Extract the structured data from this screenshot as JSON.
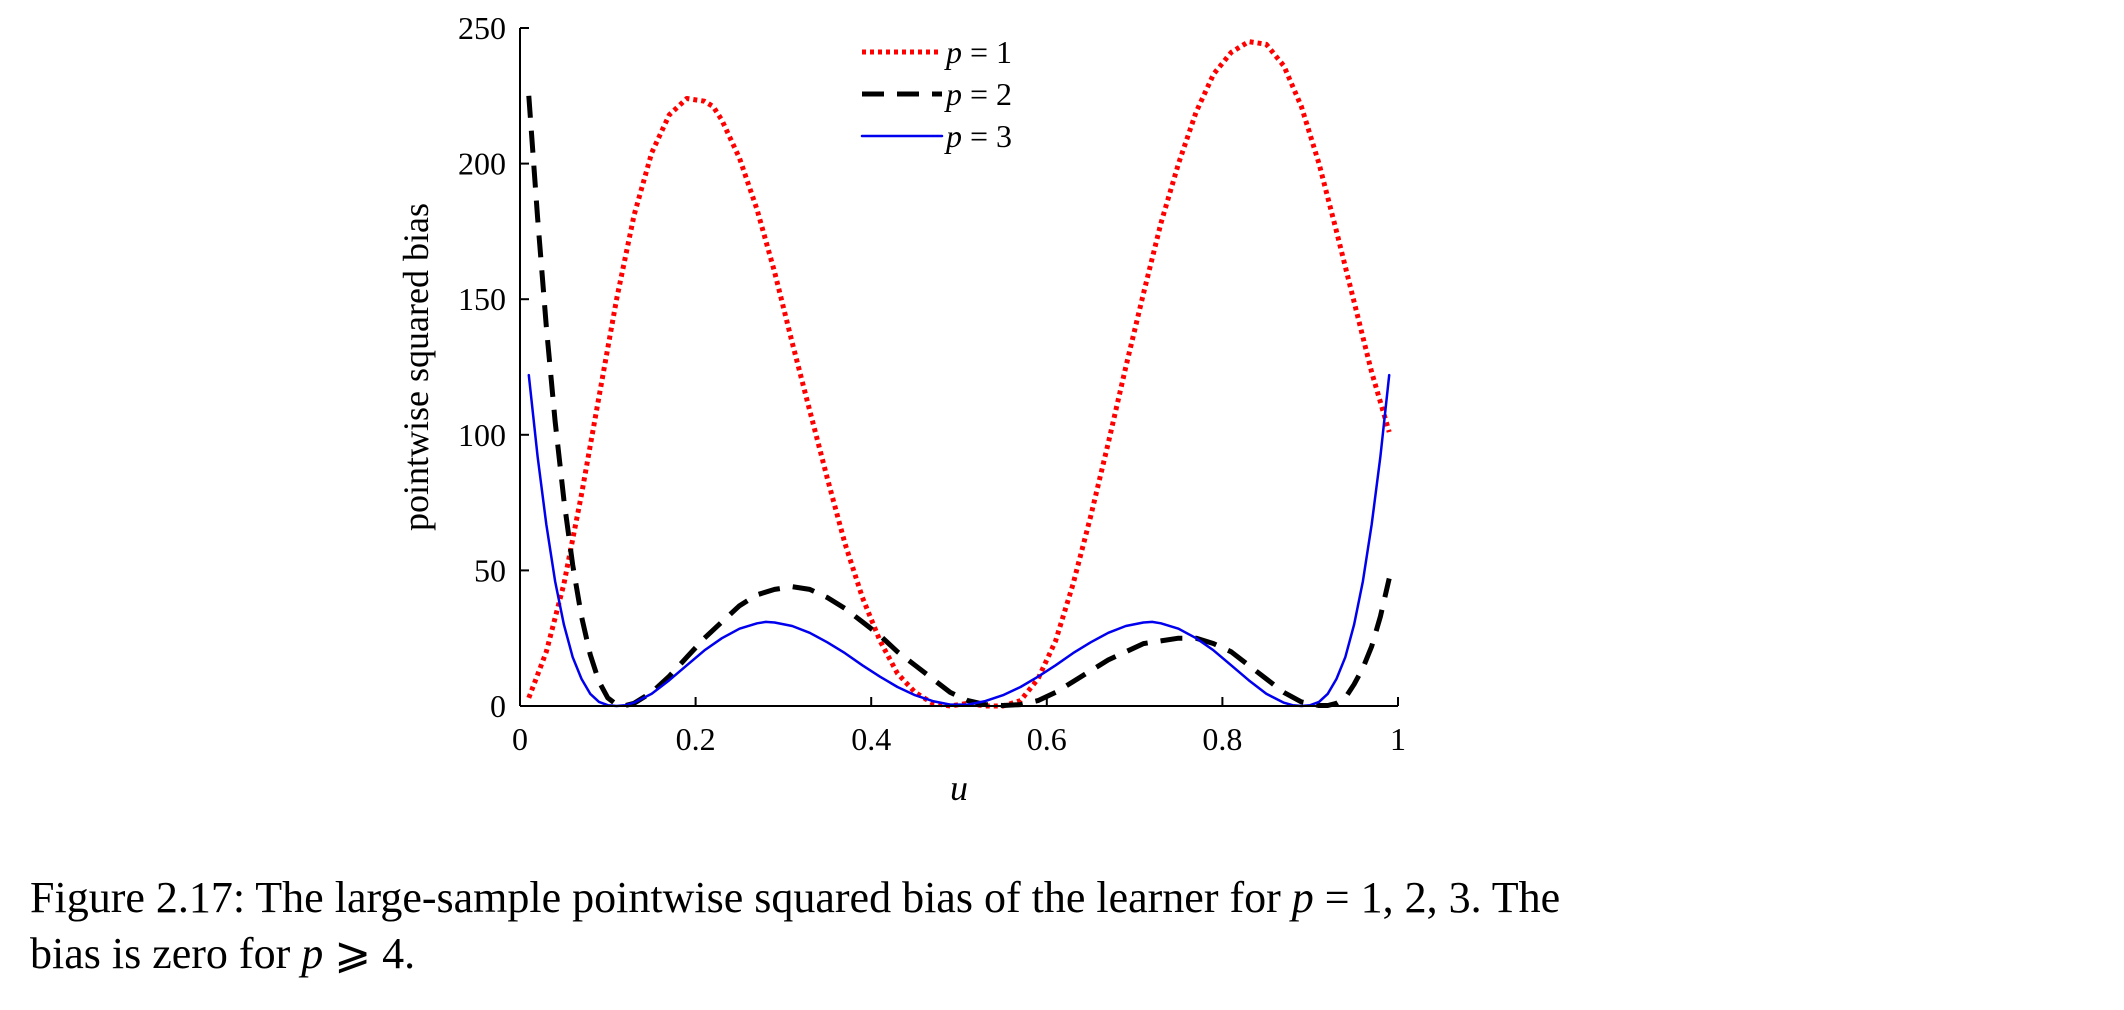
{
  "chart_data": {
    "type": "line",
    "xlabel": "u",
    "ylabel": "pointwise squared bias",
    "xlim": [
      0,
      1
    ],
    "ylim": [
      0,
      250
    ],
    "x_ticks": [
      0,
      0.2,
      0.4,
      0.6,
      0.8,
      1
    ],
    "x_tick_labels": [
      "0",
      "0.2",
      "0.4",
      "0.6",
      "0.8",
      "1"
    ],
    "y_ticks": [
      0,
      50,
      100,
      150,
      200,
      250
    ],
    "y_tick_labels": [
      "0",
      "50",
      "100",
      "150",
      "200",
      "250"
    ],
    "grid": false,
    "legend_position": "top-center",
    "series": [
      {
        "name": "p = 1",
        "var": "p",
        "eq": "= 1",
        "color": "#ff0000",
        "style": "dotted",
        "x": [
          0.01,
          0.03,
          0.05,
          0.07,
          0.09,
          0.11,
          0.13,
          0.15,
          0.17,
          0.19,
          0.21,
          0.22,
          0.23,
          0.25,
          0.27,
          0.29,
          0.31,
          0.33,
          0.35,
          0.37,
          0.39,
          0.41,
          0.43,
          0.45,
          0.47,
          0.49,
          0.51,
          0.53,
          0.55,
          0.57,
          0.59,
          0.61,
          0.63,
          0.65,
          0.67,
          0.69,
          0.71,
          0.73,
          0.75,
          0.77,
          0.79,
          0.81,
          0.83,
          0.85,
          0.87,
          0.89,
          0.91,
          0.93,
          0.95,
          0.97,
          0.99
        ],
        "y": [
          3,
          20,
          45,
          78,
          114,
          150,
          181,
          204,
          218,
          224,
          223,
          221,
          216,
          202,
          183,
          160,
          134,
          109,
          84,
          60,
          40,
          24,
          12,
          5,
          1,
          0,
          1,
          0,
          0,
          2,
          10,
          24,
          45,
          70,
          97,
          125,
          152,
          178,
          200,
          219,
          233,
          241,
          245,
          244,
          236,
          221,
          200,
          175,
          149,
          123,
          101
        ]
      },
      {
        "name": "p = 2",
        "var": "p",
        "eq": "= 2",
        "color": "#000000",
        "style": "dashed",
        "x": [
          0.01,
          0.02,
          0.03,
          0.04,
          0.05,
          0.06,
          0.07,
          0.08,
          0.09,
          0.1,
          0.11,
          0.12,
          0.13,
          0.15,
          0.17,
          0.19,
          0.21,
          0.23,
          0.25,
          0.27,
          0.29,
          0.31,
          0.33,
          0.35,
          0.37,
          0.39,
          0.41,
          0.43,
          0.45,
          0.47,
          0.49,
          0.51,
          0.53,
          0.55,
          0.57,
          0.59,
          0.61,
          0.63,
          0.65,
          0.67,
          0.69,
          0.71,
          0.73,
          0.75,
          0.77,
          0.79,
          0.81,
          0.83,
          0.85,
          0.87,
          0.89,
          0.91,
          0.92,
          0.93,
          0.94,
          0.95,
          0.96,
          0.97,
          0.98,
          0.99
        ],
        "y": [
          225,
          180,
          140,
          105,
          76,
          52,
          33,
          19,
          9,
          3,
          0.5,
          0.2,
          1,
          5,
          11,
          18,
          25,
          31,
          37,
          41,
          43,
          44,
          43,
          40,
          36,
          31,
          26,
          20,
          15,
          10,
          5,
          2,
          0.5,
          0.2,
          0.5,
          2,
          5,
          9,
          13,
          17,
          20,
          23,
          24,
          25,
          25,
          23,
          20,
          15,
          10,
          5,
          1.5,
          0.2,
          0.2,
          1,
          3,
          8,
          14,
          22,
          33,
          47
        ]
      },
      {
        "name": "p = 3",
        "var": "p",
        "eq": "= 3",
        "color": "#0000ee",
        "style": "solid",
        "x": [
          0.01,
          0.02,
          0.03,
          0.04,
          0.05,
          0.06,
          0.07,
          0.08,
          0.09,
          0.1,
          0.11,
          0.12,
          0.13,
          0.15,
          0.17,
          0.19,
          0.21,
          0.23,
          0.25,
          0.27,
          0.28,
          0.29,
          0.31,
          0.33,
          0.35,
          0.37,
          0.39,
          0.41,
          0.43,
          0.45,
          0.47,
          0.49,
          0.51,
          0.53,
          0.55,
          0.57,
          0.59,
          0.61,
          0.63,
          0.65,
          0.67,
          0.69,
          0.71,
          0.72,
          0.73,
          0.75,
          0.77,
          0.79,
          0.81,
          0.83,
          0.85,
          0.87,
          0.88,
          0.89,
          0.9,
          0.91,
          0.92,
          0.93,
          0.94,
          0.95,
          0.96,
          0.97,
          0.98,
          0.99
        ],
        "y": [
          122,
          92,
          67,
          46,
          30,
          18,
          10,
          4.5,
          1.5,
          0.3,
          0,
          0.3,
          1.2,
          4.5,
          9.5,
          15,
          20.5,
          25,
          28.5,
          30.5,
          31,
          30.8,
          29.5,
          27,
          23.5,
          19.5,
          15,
          10.8,
          7,
          4,
          1.8,
          0.5,
          0.5,
          1.8,
          4,
          7,
          10.8,
          15,
          19.5,
          23.5,
          27,
          29.5,
          30.8,
          31,
          30.5,
          28.5,
          25,
          20.5,
          15,
          9.5,
          4.5,
          1.2,
          0.3,
          0,
          0.3,
          1.5,
          4.5,
          10,
          18,
          30,
          46,
          67,
          92,
          122
        ]
      }
    ]
  },
  "caption": {
    "prefix": "Figure 2.17: The large-sample pointwise squared bias of the learner for ",
    "var1": "p",
    "mid1": " = 1, 2, 3. The",
    "line2_prefix": "bias is zero for ",
    "var2": "p",
    "line2_suffix": " ⩾ 4."
  }
}
